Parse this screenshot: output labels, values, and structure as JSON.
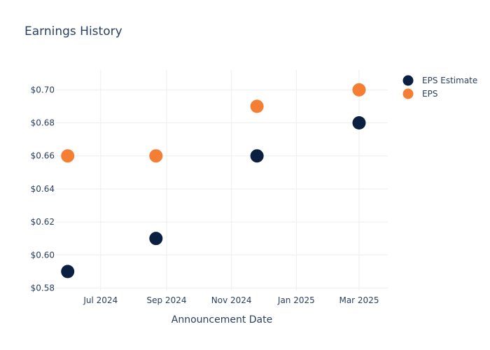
{
  "chart_data": {
    "type": "scatter",
    "title": "Earnings History",
    "xlabel": "Announcement Date",
    "ylabel": "",
    "x_ticks": [
      "Jul 2024",
      "Sep 2024",
      "Nov 2024",
      "Jan 2025",
      "Mar 2025"
    ],
    "x_tick_dates": [
      "2024-07-01",
      "2024-09-01",
      "2024-11-01",
      "2025-01-01",
      "2025-03-01"
    ],
    "y_ticks": [
      "$0.58",
      "$0.60",
      "$0.62",
      "$0.64",
      "$0.66",
      "$0.68",
      "$0.70"
    ],
    "y_tick_values": [
      0.58,
      0.6,
      0.62,
      0.64,
      0.66,
      0.68,
      0.7
    ],
    "xlim": [
      "2024-05-20",
      "2025-03-28"
    ],
    "ylim": [
      0.5785,
      0.712
    ],
    "grid": true,
    "legend_position": "top-right",
    "series": [
      {
        "name": "EPS Estimate",
        "color": "#0b1f41",
        "points": [
          {
            "x": "2024-05-31",
            "y": 0.59
          },
          {
            "x": "2024-08-22",
            "y": 0.61
          },
          {
            "x": "2024-11-25",
            "y": 0.66
          },
          {
            "x": "2025-03-01",
            "y": 0.68
          }
        ]
      },
      {
        "name": "EPS",
        "color": "#f47f34",
        "points": [
          {
            "x": "2024-05-31",
            "y": 0.66
          },
          {
            "x": "2024-08-22",
            "y": 0.66
          },
          {
            "x": "2024-11-25",
            "y": 0.69
          },
          {
            "x": "2025-03-01",
            "y": 0.7
          }
        ]
      }
    ]
  }
}
